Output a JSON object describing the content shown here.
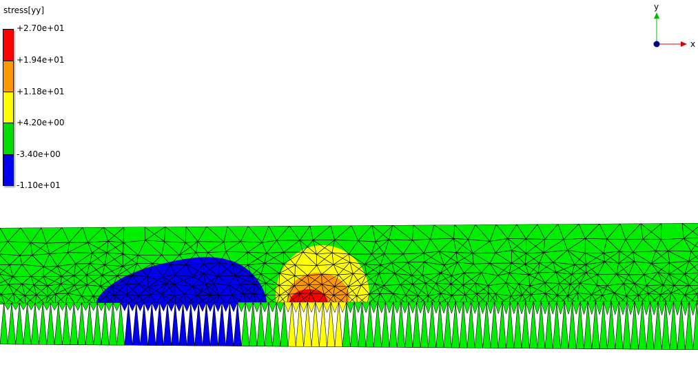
{
  "legend": {
    "title": "stress[yy]",
    "levels": [
      {
        "label": "+2.70e+01",
        "color": "#ff0000"
      },
      {
        "label": "+1.94e+01",
        "color": "#ff9900"
      },
      {
        "label": "+1.18e+01",
        "color": "#ffff00"
      },
      {
        "label": "+4.20e+00",
        "color": "#00dd00"
      },
      {
        "label": "-3.40e+00",
        "color": "#0000ee"
      },
      {
        "label": "-1.10e+01",
        "color": ""
      }
    ]
  },
  "axes": {
    "x_label": "x",
    "y_label": "y",
    "x_color": "#dd0000",
    "y_color": "#00bb00",
    "origin_color": "#000080"
  },
  "mesh": {
    "background_color": "#00ee00",
    "line_color": "#000000"
  }
}
